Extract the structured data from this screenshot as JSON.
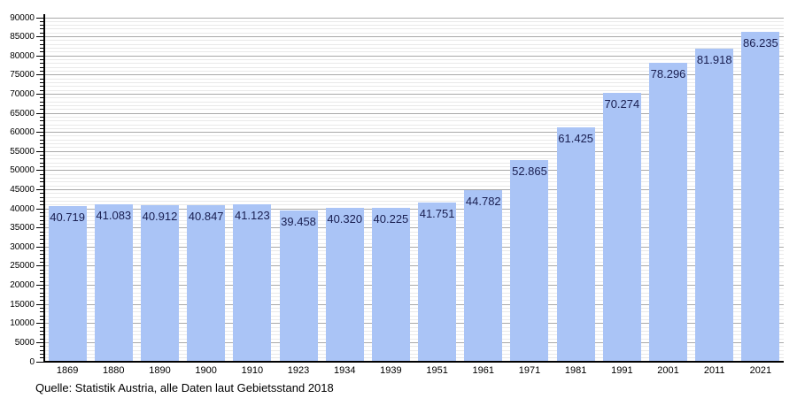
{
  "chart_data": {
    "type": "bar",
    "title": "",
    "categories": [
      "1869",
      "1880",
      "1890",
      "1900",
      "1910",
      "1923",
      "1934",
      "1939",
      "1951",
      "1961",
      "1971",
      "1981",
      "1991",
      "2001",
      "2011",
      "2021"
    ],
    "values": [
      40719,
      41083,
      40912,
      40847,
      41123,
      39458,
      40320,
      40225,
      41751,
      44782,
      52865,
      61425,
      70274,
      78296,
      81918,
      86235
    ],
    "value_labels": [
      "40.719",
      "41.083",
      "40.912",
      "40.847",
      "41.123",
      "39.458",
      "40.320",
      "40.225",
      "41.751",
      "44.782",
      "52.865",
      "61.425",
      "70.274",
      "78.296",
      "81.918",
      "86.235"
    ],
    "xlabel": "",
    "ylabel": "",
    "ylim": [
      0,
      90000
    ],
    "y_major_step": 5000,
    "y_minor_step": 1000,
    "y_tick_labels": [
      "0",
      "5000",
      "10000",
      "15000",
      "20000",
      "25000",
      "30000",
      "35000",
      "40000",
      "45000",
      "50000",
      "55000",
      "60000",
      "65000",
      "70000",
      "75000",
      "80000",
      "85000",
      "90000"
    ],
    "grid": "on",
    "legend": "none",
    "colors": {
      "bar_fill": "#aac4f6",
      "value_label_text": "#191e50",
      "major_gridline": "#a9a9a9",
      "minor_gridline": "#e9e9e9",
      "axis": "#000000",
      "background": "#ffffff"
    }
  },
  "footer": {
    "source_text": "Quelle: Statistik Austria, alle Daten laut Gebietsstand 2018"
  }
}
